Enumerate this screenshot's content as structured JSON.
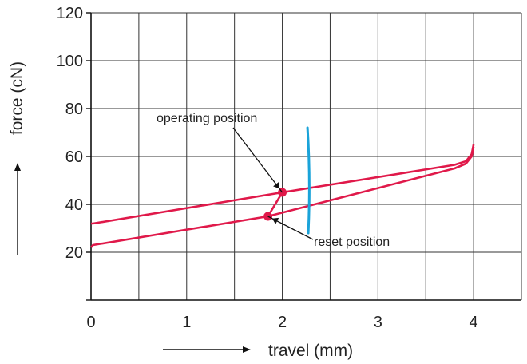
{
  "chart_data": {
    "type": "line",
    "title": "",
    "xlabel": "travel (mm)",
    "ylabel": "force (cN)",
    "xlim": [
      0,
      4.5
    ],
    "ylim": [
      0,
      120
    ],
    "x_ticks": [
      0,
      1,
      2,
      3,
      4
    ],
    "y_ticks": [
      20,
      40,
      60,
      80,
      100,
      120
    ],
    "grid": true,
    "grid_x_step": 0.5,
    "grid_y_step": 20,
    "series": [
      {
        "color": "#e0194a",
        "points": [
          [
            0,
            32
          ],
          [
            0.02,
            32
          ],
          [
            2.0,
            45
          ],
          [
            3.8,
            56.5
          ],
          [
            3.92,
            58
          ],
          [
            3.98,
            61
          ],
          [
            4.0,
            65
          ]
        ]
      },
      {
        "color": "#e0194a",
        "points": [
          [
            0,
            22
          ],
          [
            0.02,
            23
          ],
          [
            1.85,
            35
          ],
          [
            3.8,
            55
          ],
          [
            3.92,
            57
          ],
          [
            3.98,
            60
          ],
          [
            4.0,
            64
          ]
        ]
      }
    ],
    "transition_segment": {
      "color": "#e0194a",
      "points": [
        [
          1.85,
          35
        ],
        [
          2.0,
          45
        ]
      ]
    },
    "markers": [
      {
        "x": 2.0,
        "y": 45,
        "color": "#e0194a"
      },
      {
        "x": 1.85,
        "y": 35,
        "color": "#e0194a"
      }
    ],
    "annotations": [
      {
        "text": "operating position",
        "target": [
          2.0,
          45
        ]
      },
      {
        "text": "reset position",
        "target": [
          1.85,
          35
        ]
      }
    ],
    "highlight_stroke": {
      "color": "#1aa3d9",
      "points": [
        [
          2.28,
          72
        ],
        [
          2.28,
          28
        ]
      ]
    }
  }
}
